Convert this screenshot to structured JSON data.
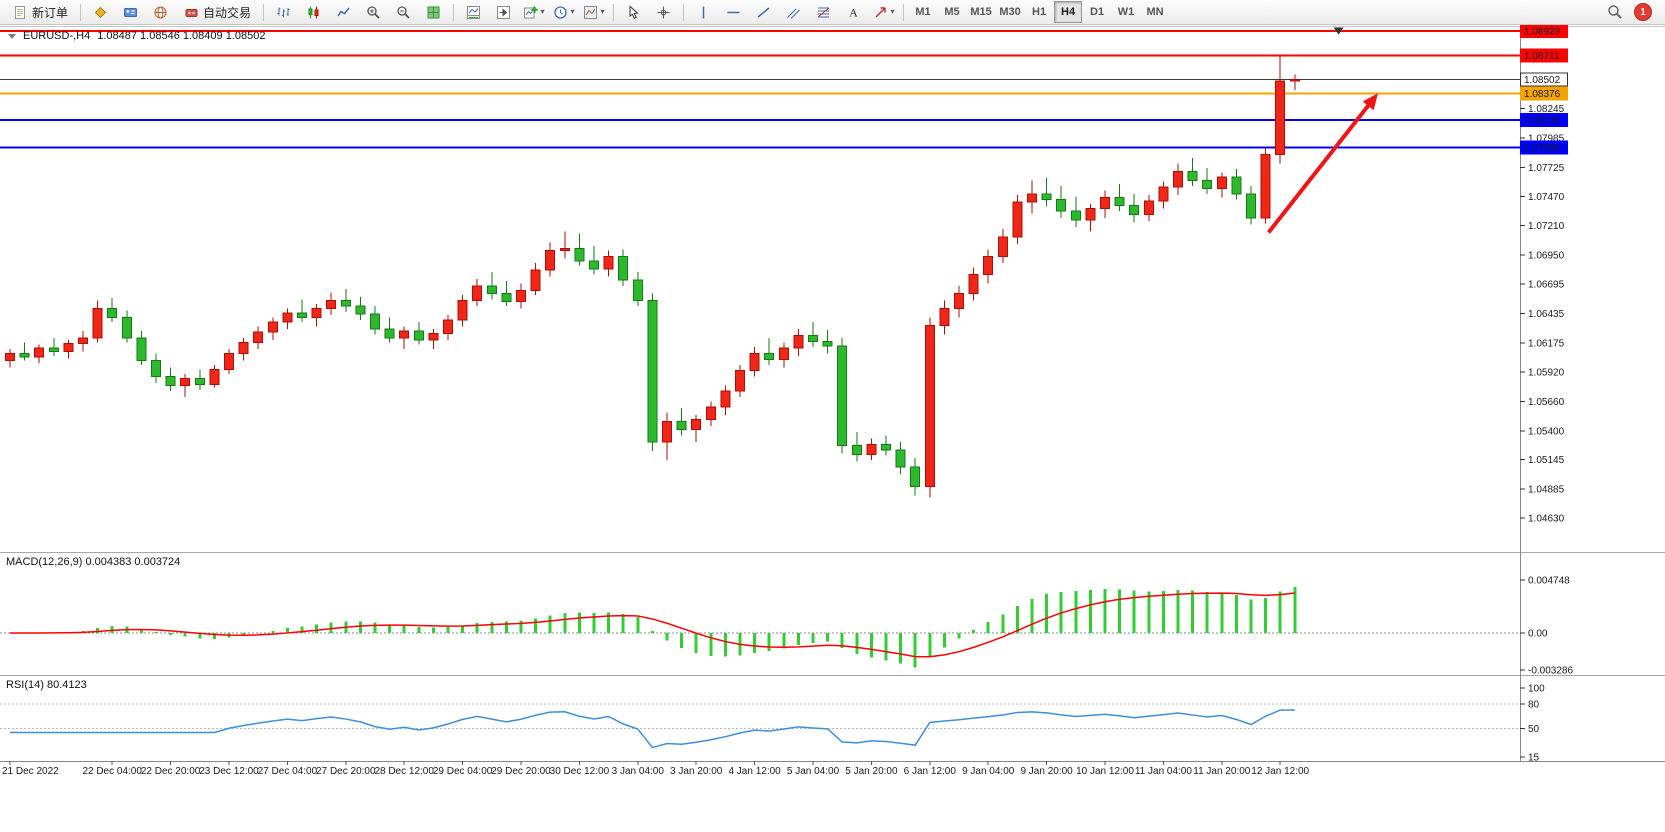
{
  "toolbar": {
    "items": [
      {
        "kind": "button",
        "name": "new-order-button",
        "icon": "new-order-icon",
        "label": "新订单"
      },
      {
        "kind": "sep"
      },
      {
        "kind": "button",
        "name": "gold-cube-button",
        "icon": "gold-cube-icon"
      },
      {
        "kind": "button",
        "name": "accounts-button",
        "icon": "accounts-icon"
      },
      {
        "kind": "button",
        "name": "web-terminal-button",
        "icon": "globe-icon"
      },
      {
        "kind": "button",
        "name": "auto-trading-button",
        "icon": "auto-trading-icon",
        "label": "自动交易"
      },
      {
        "kind": "sep"
      },
      {
        "kind": "button",
        "name": "bar-chart-button",
        "icon": "bar-chart-icon"
      },
      {
        "kind": "button",
        "name": "candlestick-chart-button",
        "icon": "candlestick-icon"
      },
      {
        "kind": "button",
        "name": "line-chart-button",
        "icon": "line-chart-icon"
      },
      {
        "kind": "button",
        "name": "zoom-in-button",
        "icon": "zoom-in-icon"
      },
      {
        "kind": "button",
        "name": "zoom-out-button",
        "icon": "zoom-out-icon"
      },
      {
        "kind": "button",
        "name": "tile-windows-button",
        "icon": "tile-windows-icon"
      },
      {
        "kind": "sep"
      },
      {
        "kind": "button",
        "name": "indicator-window-button",
        "icon": "indicator-window-icon"
      },
      {
        "kind": "button",
        "name": "chart-shift-button",
        "icon": "chart-shift-icon"
      },
      {
        "kind": "button",
        "name": "add-indicator-button",
        "icon": "add-indicator-icon",
        "caret": true
      },
      {
        "kind": "button",
        "name": "periods-button",
        "icon": "clock-icon",
        "caret": true
      },
      {
        "kind": "button",
        "name": "templates-button",
        "icon": "template-icon",
        "caret": true
      },
      {
        "kind": "sep"
      },
      {
        "kind": "button",
        "name": "cursor-tool-button",
        "icon": "cursor-icon"
      },
      {
        "kind": "button",
        "name": "crosshair-tool-button",
        "icon": "crosshair-icon"
      },
      {
        "kind": "sep"
      },
      {
        "kind": "button",
        "name": "vertical-line-tool-button",
        "icon": "vertical-line-icon"
      },
      {
        "kind": "button",
        "name": "horizontal-line-tool-button",
        "icon": "horizontal-line-icon"
      },
      {
        "kind": "button",
        "name": "trendline-tool-button",
        "icon": "trendline-icon"
      },
      {
        "kind": "button",
        "name": "channel-tool-button",
        "icon": "channel-icon"
      },
      {
        "kind": "button",
        "name": "fibonacci-tool-button",
        "icon": "fibonacci-icon"
      },
      {
        "kind": "button",
        "name": "text-tool-button",
        "icon": "text-icon"
      },
      {
        "kind": "button",
        "name": "arrows-tool-button",
        "icon": "arrows-icon",
        "caret": true
      },
      {
        "kind": "sep"
      }
    ],
    "timeframes": [
      "M1",
      "M5",
      "M15",
      "M30",
      "H1",
      "H4",
      "D1",
      "W1",
      "MN"
    ],
    "active_timeframe": "H4",
    "notification_count": "1"
  },
  "chart": {
    "header": {
      "symbol_period": "EURUSD-,H4",
      "ohlc": "1.08487 1.08546 1.08409 1.08502"
    }
  },
  "indicators": {
    "macd": {
      "label": "MACD(12,26,9) 0.004383 0.003724",
      "axis_ticks": [
        "0.004748",
        "0.00",
        "-0.003286"
      ]
    },
    "rsi": {
      "label": "RSI(14) 80.4123",
      "axis_ticks": [
        "100",
        "80",
        "50",
        "15"
      ]
    }
  },
  "time_axis": {
    "labels": [
      {
        "text": "21 Dec 2022",
        "bar": 0
      },
      {
        "text": "22 Dec 04:00",
        "bar": 7
      },
      {
        "text": "22 Dec 20:00",
        "bar": 11
      },
      {
        "text": "23 Dec 12:00",
        "bar": 15
      },
      {
        "text": "27 Dec 04:00",
        "bar": 19
      },
      {
        "text": "27 Dec 20:00",
        "bar": 23
      },
      {
        "text": "28 Dec 12:00",
        "bar": 27
      },
      {
        "text": "29 Dec 04:00",
        "bar": 31
      },
      {
        "text": "29 Dec 20:00",
        "bar": 35
      },
      {
        "text": "30 Dec 12:00",
        "bar": 39
      },
      {
        "text": "3 Jan 04:00",
        "bar": 43
      },
      {
        "text": "3 Jan 20:00",
        "bar": 47
      },
      {
        "text": "4 Jan 12:00",
        "bar": 51
      },
      {
        "text": "5 Jan 04:00",
        "bar": 55
      },
      {
        "text": "5 Jan 20:00",
        "bar": 59
      },
      {
        "text": "6 Jan 12:00",
        "bar": 63
      },
      {
        "text": "9 Jan 04:00",
        "bar": 67
      },
      {
        "text": "9 Jan 20:00",
        "bar": 71
      },
      {
        "text": "10 Jan 12:00",
        "bar": 75
      },
      {
        "text": "11 Jan 04:00",
        "bar": 79
      },
      {
        "text": "11 Jan 20:00",
        "bar": 83
      },
      {
        "text": "12 Jan 12:00",
        "bar": 87
      }
    ]
  },
  "chart_data": {
    "type": "candlestick",
    "symbol": "EURUSD-",
    "period": "H4",
    "ohlc_format": [
      "open",
      "high",
      "low",
      "close"
    ],
    "bull_color": "#f02718",
    "bear_color": "#2db92d",
    "candles": [
      [
        1.0602,
        1.0612,
        1.0596,
        1.0608
      ],
      [
        1.0608,
        1.0618,
        1.0602,
        1.0605
      ],
      [
        1.0605,
        1.0616,
        1.06,
        1.0613
      ],
      [
        1.0613,
        1.0622,
        1.0606,
        1.061
      ],
      [
        1.061,
        1.062,
        1.0604,
        1.0617
      ],
      [
        1.0617,
        1.0628,
        1.061,
        1.0622
      ],
      [
        1.0622,
        1.0655,
        1.0618,
        1.0648
      ],
      [
        1.0648,
        1.0657,
        1.0636,
        1.064
      ],
      [
        1.064,
        1.0646,
        1.0618,
        1.0622
      ],
      [
        1.0622,
        1.0628,
        1.0598,
        1.0602
      ],
      [
        1.0602,
        1.0608,
        1.0582,
        1.0588
      ],
      [
        1.0588,
        1.0596,
        1.0575,
        1.058
      ],
      [
        1.058,
        1.059,
        1.057,
        1.0586
      ],
      [
        1.0586,
        1.0594,
        1.0576,
        1.0581
      ],
      [
        1.0581,
        1.0598,
        1.0578,
        1.0594
      ],
      [
        1.0594,
        1.0612,
        1.059,
        1.0608
      ],
      [
        1.0608,
        1.0622,
        1.0602,
        1.0618
      ],
      [
        1.0618,
        1.0632,
        1.0612,
        1.0627
      ],
      [
        1.0627,
        1.064,
        1.062,
        1.0636
      ],
      [
        1.0636,
        1.0648,
        1.063,
        1.0644
      ],
      [
        1.0644,
        1.0656,
        1.0636,
        1.064
      ],
      [
        1.064,
        1.0652,
        1.0632,
        1.0648
      ],
      [
        1.0648,
        1.0662,
        1.0642,
        1.0655
      ],
      [
        1.0655,
        1.0665,
        1.0645,
        1.065
      ],
      [
        1.065,
        1.0658,
        1.0638,
        1.0643
      ],
      [
        1.0643,
        1.065,
        1.0625,
        1.063
      ],
      [
        1.063,
        1.064,
        1.0618,
        1.0622
      ],
      [
        1.0622,
        1.0632,
        1.0612,
        1.0628
      ],
      [
        1.0628,
        1.0636,
        1.0616,
        1.062
      ],
      [
        1.062,
        1.063,
        1.0612,
        1.0626
      ],
      [
        1.0626,
        1.0642,
        1.062,
        1.0638
      ],
      [
        1.0638,
        1.066,
        1.0632,
        1.0655
      ],
      [
        1.0655,
        1.0674,
        1.065,
        1.0668
      ],
      [
        1.0668,
        1.068,
        1.0656,
        1.0661
      ],
      [
        1.0661,
        1.0672,
        1.065,
        1.0654
      ],
      [
        1.0654,
        1.067,
        1.0648,
        1.0664
      ],
      [
        1.0664,
        1.0688,
        1.066,
        1.0682
      ],
      [
        1.0682,
        1.0706,
        1.0676,
        1.0699
      ],
      [
        1.0699,
        1.0716,
        1.0692,
        1.0701
      ],
      [
        1.0701,
        1.0714,
        1.0686,
        1.069
      ],
      [
        1.069,
        1.0703,
        1.0678,
        1.0683
      ],
      [
        1.0683,
        1.0699,
        1.0676,
        1.0694
      ],
      [
        1.0694,
        1.07,
        1.0668,
        1.0673
      ],
      [
        1.0673,
        1.068,
        1.065,
        1.0655
      ],
      [
        1.0655,
        1.0661,
        1.0522,
        1.053
      ],
      [
        1.053,
        1.0556,
        1.0514,
        1.0548
      ],
      [
        1.0548,
        1.056,
        1.0536,
        1.0541
      ],
      [
        1.0541,
        1.0554,
        1.053,
        1.055
      ],
      [
        1.055,
        1.0566,
        1.0544,
        1.0561
      ],
      [
        1.0561,
        1.058,
        1.0554,
        1.0575
      ],
      [
        1.0575,
        1.0598,
        1.057,
        1.0593
      ],
      [
        1.0593,
        1.0614,
        1.0588,
        1.0608
      ],
      [
        1.0608,
        1.0622,
        1.0598,
        1.0603
      ],
      [
        1.0603,
        1.0618,
        1.0596,
        1.0613
      ],
      [
        1.0613,
        1.063,
        1.0606,
        1.0624
      ],
      [
        1.0624,
        1.0636,
        1.0614,
        1.0619
      ],
      [
        1.0619,
        1.0629,
        1.0608,
        1.0615
      ],
      [
        1.0615,
        1.0622,
        1.052,
        1.0527
      ],
      [
        1.0527,
        1.0539,
        1.0513,
        1.0519
      ],
      [
        1.0519,
        1.0533,
        1.0514,
        1.0528
      ],
      [
        1.0528,
        1.0536,
        1.0518,
        1.0523
      ],
      [
        1.0523,
        1.053,
        1.0502,
        1.0508
      ],
      [
        1.0508,
        1.0516,
        1.0483,
        1.0491
      ],
      [
        1.0491,
        1.064,
        1.0481,
        1.0633
      ],
      [
        1.0633,
        1.0655,
        1.0625,
        1.0648
      ],
      [
        1.0648,
        1.0668,
        1.064,
        1.0661
      ],
      [
        1.0661,
        1.0684,
        1.0655,
        1.0678
      ],
      [
        1.0678,
        1.07,
        1.067,
        1.0694
      ],
      [
        1.0694,
        1.0718,
        1.0688,
        1.0711
      ],
      [
        1.0711,
        1.0748,
        1.0705,
        1.0742
      ],
      [
        1.0742,
        1.0761,
        1.0732,
        1.0749
      ],
      [
        1.0749,
        1.0763,
        1.0738,
        1.0744
      ],
      [
        1.0744,
        1.0756,
        1.0728,
        1.0734
      ],
      [
        1.0734,
        1.0747,
        1.072,
        1.0726
      ],
      [
        1.0726,
        1.074,
        1.0716,
        1.0736
      ],
      [
        1.0736,
        1.0752,
        1.0728,
        1.0746
      ],
      [
        1.0746,
        1.0758,
        1.0734,
        1.0739
      ],
      [
        1.0739,
        1.0749,
        1.0724,
        1.0731
      ],
      [
        1.0731,
        1.0748,
        1.0725,
        1.0743
      ],
      [
        1.0743,
        1.076,
        1.0736,
        1.0755
      ],
      [
        1.0755,
        1.0776,
        1.0748,
        1.0769
      ],
      [
        1.0769,
        1.0781,
        1.0756,
        1.0761
      ],
      [
        1.0761,
        1.0772,
        1.0749,
        1.0754
      ],
      [
        1.0754,
        1.0768,
        1.0746,
        1.0764
      ],
      [
        1.0764,
        1.0771,
        1.0744,
        1.0749
      ],
      [
        1.0749,
        1.0756,
        1.0722,
        1.0728
      ],
      [
        1.0728,
        1.079,
        1.0723,
        1.0784
      ],
      [
        1.0784,
        1.0871,
        1.0776,
        1.08487
      ],
      [
        1.08487,
        1.08546,
        1.08409,
        1.08502
      ]
    ],
    "levels": [
      {
        "value": 1.08929,
        "label": "1.08929",
        "color": "#ff0000"
      },
      {
        "value": 1.08711,
        "label": "1.08711",
        "color": "#ff0000"
      },
      {
        "value": 1.08376,
        "label": "1.08376",
        "color": "#f5a300"
      },
      {
        "value": 1.08145,
        "label": "1.08145",
        "color": "#0000ff"
      },
      {
        "value": 1.07899,
        "label": "1.07899",
        "color": "#0000ff"
      }
    ],
    "current_price": {
      "value": 1.08502,
      "label": "1.08502"
    },
    "price_ticks": [
      1.08245,
      1.07985,
      1.07725,
      1.0747,
      1.0721,
      1.0695,
      1.06695,
      1.06435,
      1.06175,
      1.0592,
      1.0566,
      1.054,
      1.05145,
      1.04885,
      1.0463
    ],
    "macd": {
      "fast": 12,
      "slow": 26,
      "signal_period": 9,
      "current_main": 0.004383,
      "current_signal": 0.003724,
      "histogram_color": "#32cd32",
      "signal_color": "#ff0000"
    },
    "rsi": {
      "period": 14,
      "current": 80.4123,
      "color": "#3c8fdc",
      "levels": [
        80,
        50
      ]
    },
    "annotation_arrow": {
      "start_bar": 86.2,
      "start_price": 1.0715,
      "end_bar": 93.7,
      "end_price": 1.0838,
      "color": "#f01414",
      "width": 4
    },
    "shift_marker_bar": 91
  }
}
